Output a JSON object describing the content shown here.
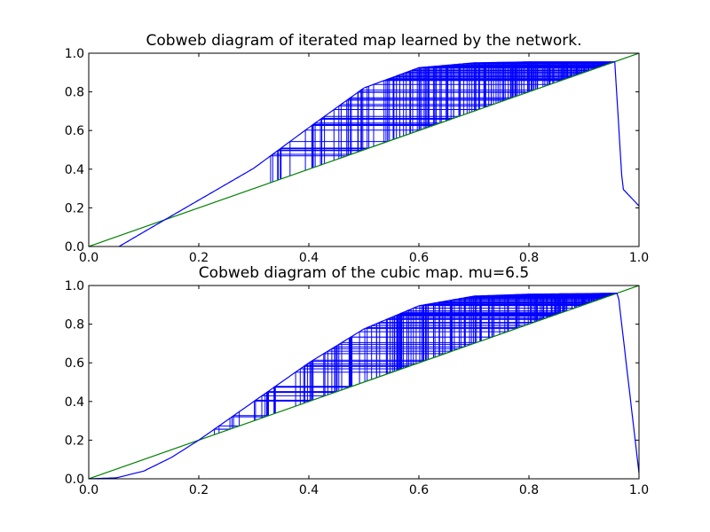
{
  "chart_data": [
    {
      "type": "line",
      "title": "Cobweb diagram of iterated map learned by the network.",
      "xlabel": "",
      "ylabel": "",
      "xlim": [
        0.0,
        1.0
      ],
      "ylim": [
        0.0,
        1.0
      ],
      "x_ticks": [
        "0.0",
        "0.2",
        "0.4",
        "0.6",
        "0.8",
        "1.0"
      ],
      "y_ticks": [
        "0.0",
        "0.2",
        "0.4",
        "0.6",
        "0.8",
        "1.0"
      ],
      "grid": false,
      "legend": "none",
      "colors": {
        "map_curve": "#0000ff",
        "cobweb": "#0000ff",
        "identity": "#008000"
      },
      "series": [
        {
          "role": "map-curve",
          "x": [
            0.055,
            0.1,
            0.2,
            0.3,
            0.4,
            0.5,
            0.6,
            0.7,
            0.8,
            0.9,
            0.956,
            0.97,
            1.0
          ],
          "y": [
            0.0,
            0.075,
            0.24,
            0.405,
            0.615,
            0.82,
            0.925,
            0.95,
            0.955,
            0.955,
            0.955,
            0.3,
            0.21
          ]
        },
        {
          "role": "identity-line",
          "x": [
            0.0,
            1.0
          ],
          "y": [
            0.0,
            1.0
          ]
        },
        {
          "role": "cobweb",
          "x_range": [
            0.325,
            0.956
          ],
          "y_range": [
            0.325,
            0.955
          ]
        }
      ]
    },
    {
      "type": "line",
      "title": "Cobweb diagram of the cubic map.  mu=6.5",
      "xlabel": "",
      "ylabel": "",
      "xlim": [
        0.0,
        1.0
      ],
      "ylim": [
        0.0,
        1.0
      ],
      "x_ticks": [
        "0.0",
        "0.2",
        "0.4",
        "0.6",
        "0.8",
        "1.0"
      ],
      "y_ticks": [
        "0.0",
        "0.2",
        "0.4",
        "0.6",
        "0.8",
        "1.0"
      ],
      "grid": false,
      "legend": "none",
      "colors": {
        "map_curve": "#0000ff",
        "cobweb": "#0000ff",
        "identity": "#008000"
      },
      "series": [
        {
          "role": "map-curve",
          "x": [
            0.0,
            0.05,
            0.1,
            0.15,
            0.2,
            0.3,
            0.4,
            0.5,
            0.6,
            0.7,
            0.8,
            0.9,
            0.962,
            1.0
          ],
          "y": [
            0.0,
            0.005,
            0.04,
            0.11,
            0.2,
            0.4,
            0.6,
            0.775,
            0.895,
            0.945,
            0.955,
            0.958,
            0.96,
            0.03
          ]
        },
        {
          "role": "identity-line",
          "x": [
            0.0,
            1.0
          ],
          "y": [
            0.0,
            1.0
          ]
        },
        {
          "role": "cobweb",
          "x_range": [
            0.225,
            0.962
          ],
          "y_range": [
            0.225,
            0.96
          ]
        }
      ]
    }
  ]
}
